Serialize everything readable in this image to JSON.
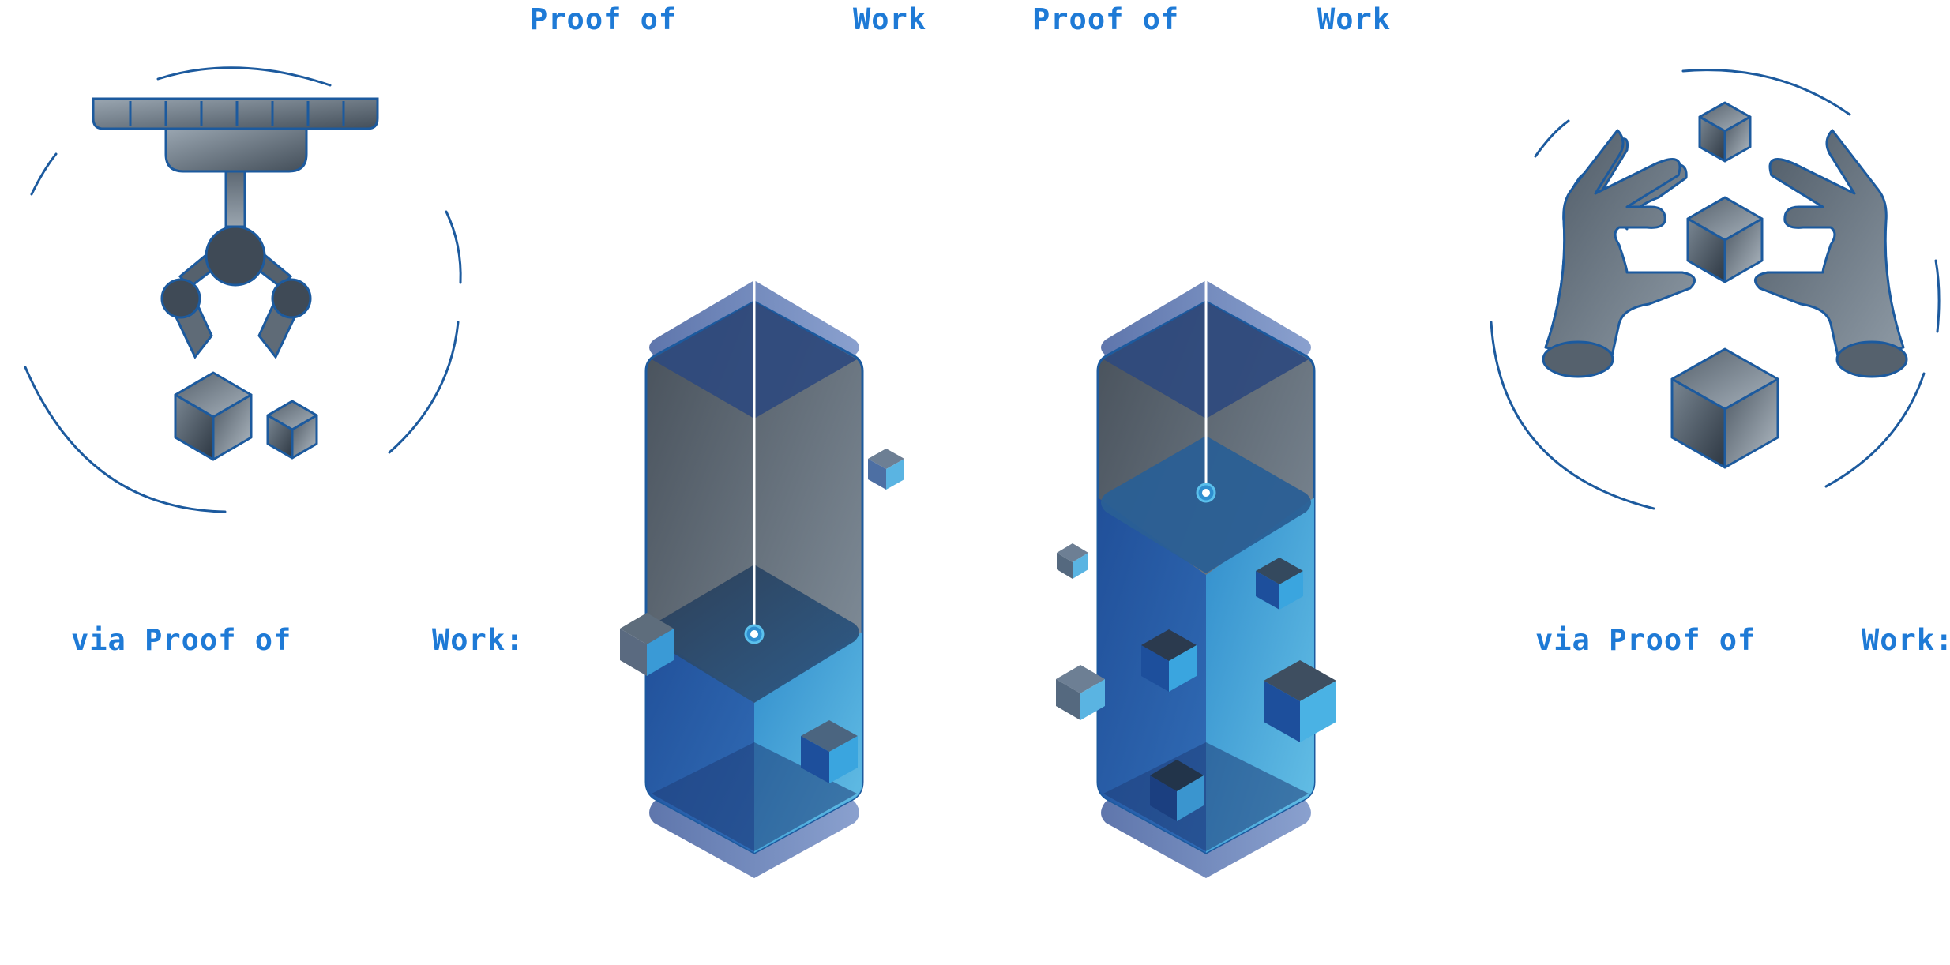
{
  "colors": {
    "label": "#1e7ad6",
    "outline": "#1c5a9e",
    "metal_dark": "#3e4a56",
    "metal_light": "#8f9ba6",
    "glass_blue": "#2b76c0",
    "glass_cyan": "#5bb8e4",
    "glass_navy": "#1f3e78"
  },
  "labels": {
    "top_left": {
      "left": "Proof of",
      "right": "Work"
    },
    "top_right": {
      "left": "Proof of",
      "right": "Work"
    },
    "bottom_left": {
      "left": "via Proof of",
      "right": "Work:"
    },
    "bottom_right": {
      "left": "via Proof of",
      "right": "Work:"
    }
  },
  "icons": {
    "left": "claw-machine-icon",
    "center_left": "cube-container-icon",
    "center_right": "cube-container-icon",
    "right": "hands-holding-cubes-icon"
  }
}
